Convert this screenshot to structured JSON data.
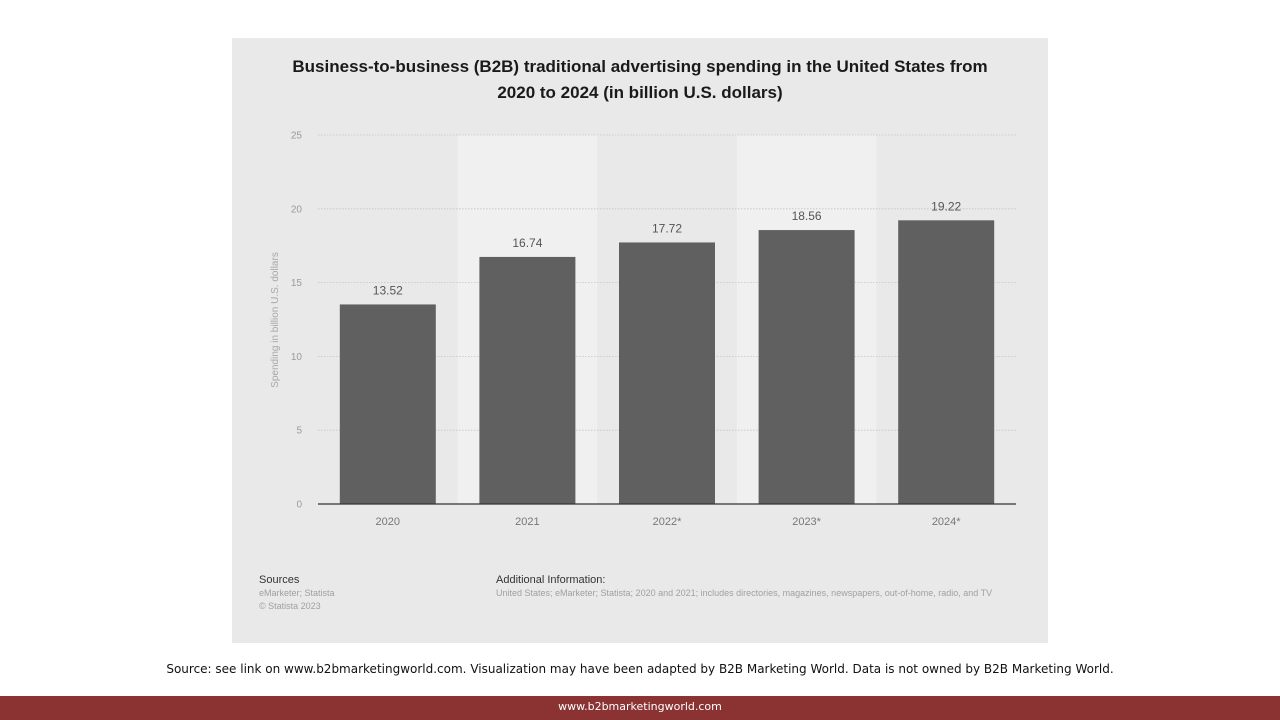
{
  "chart_data": {
    "type": "bar",
    "title": "Business-to-business (B2B) traditional advertising spending in the United States from 2020 to 2024 (in billion U.S. dollars)",
    "xlabel": "",
    "ylabel": "Spending in billion U.S. dollars",
    "categories": [
      "2020",
      "2021",
      "2022*",
      "2023*",
      "2024*"
    ],
    "values": [
      13.52,
      16.74,
      17.72,
      18.56,
      19.22
    ],
    "value_labels": [
      "13.52",
      "16.74",
      "17.72",
      "18.56",
      "19.22"
    ],
    "ylim": [
      0,
      25
    ],
    "yticks": [
      "0",
      "5",
      "10",
      "15",
      "20",
      "25"
    ],
    "grid": true,
    "bar_color": "#606060"
  },
  "footer": {
    "sources_heading": "Sources",
    "sources_line1": "eMarketer; Statista",
    "sources_line2": "© Statista 2023",
    "additional_heading": "Additional Information:",
    "additional_text": "United States; eMarketer; Statista; 2020 and 2021; includes directories, magazines, newspapers, out-of-home, radio, and TV"
  },
  "source_note": "Source: see link on www.b2bmarketingworld.com. Visualization may have been adapted by B2B Marketing World. Data is not owned by B2B Marketing World.",
  "site_url": "www.b2bmarketingworld.com",
  "colors": {
    "footer_bar": "#8b3333",
    "card_background": "#e9e9e9"
  }
}
